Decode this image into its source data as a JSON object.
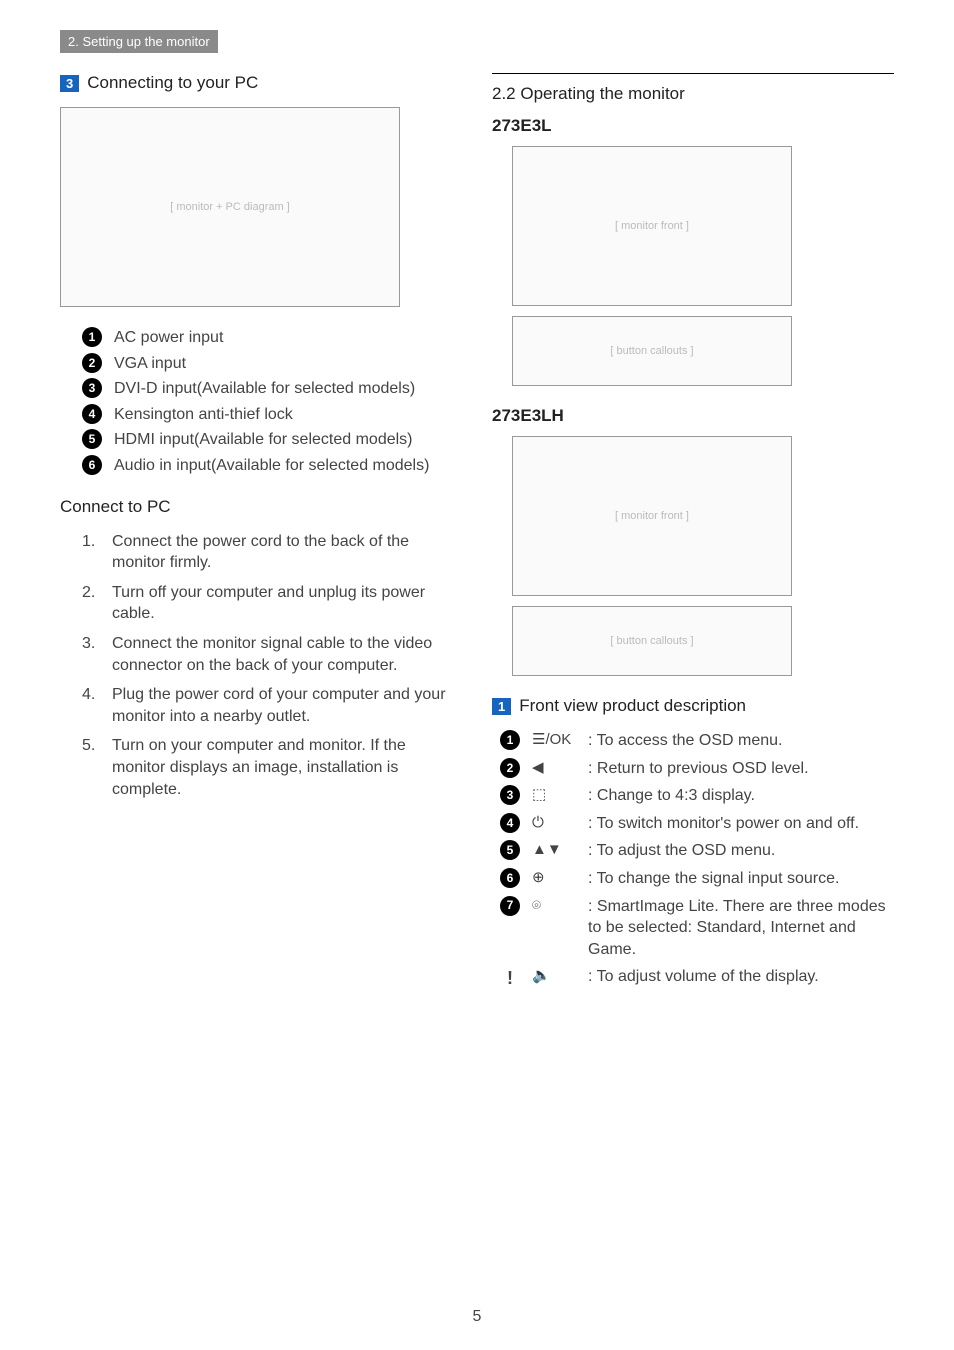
{
  "breadcrumb": "2. Setting up the monitor",
  "left": {
    "section_num": "3",
    "section_title": "Connecting to your PC",
    "inputs": [
      "AC power input",
      "VGA input",
      "DVI-D input(Available for selected models)",
      "Kensington anti-thief lock",
      "HDMI input(Available for selected models)",
      "Audio in input(Available for selected models)"
    ],
    "connect_title": "Connect to PC",
    "steps": [
      "Connect the power cord to the back of the monitor firmly.",
      "Turn off your computer and unplug its power cable.",
      "Connect the monitor signal cable to the video connector on the back of your computer.",
      "Plug the power cord of your computer and your monitor into a nearby outlet.",
      "Turn on your computer and monitor. If the monitor displays an image, installation is complete."
    ]
  },
  "right": {
    "h2": "2.2 Operating the monitor",
    "model1": "273E3L",
    "model2": "273E3LH",
    "front_view_num": "1",
    "front_view_title": "Front view product description",
    "buttons": [
      {
        "sym": "☰/OK",
        "desc": ": To access the OSD menu."
      },
      {
        "sym": "◀",
        "desc": ": Return to previous OSD level."
      },
      {
        "sym": "⬚",
        "desc": ": Change to 4:3 display."
      },
      {
        "sym": "⏻",
        "desc": ": To switch monitor's power on and off."
      },
      {
        "sym": "▲▼",
        "desc": ": To adjust the OSD menu."
      },
      {
        "sym": "⊕",
        "desc": ": To change the signal input source."
      },
      {
        "sym": "⌾",
        "desc": ": SmartImage Lite. There are three modes to be selected: Standard, Internet and Game."
      }
    ],
    "extra": {
      "sym": "🔈",
      "desc": ": To adjust volume of the display."
    }
  },
  "pagenum": "5"
}
